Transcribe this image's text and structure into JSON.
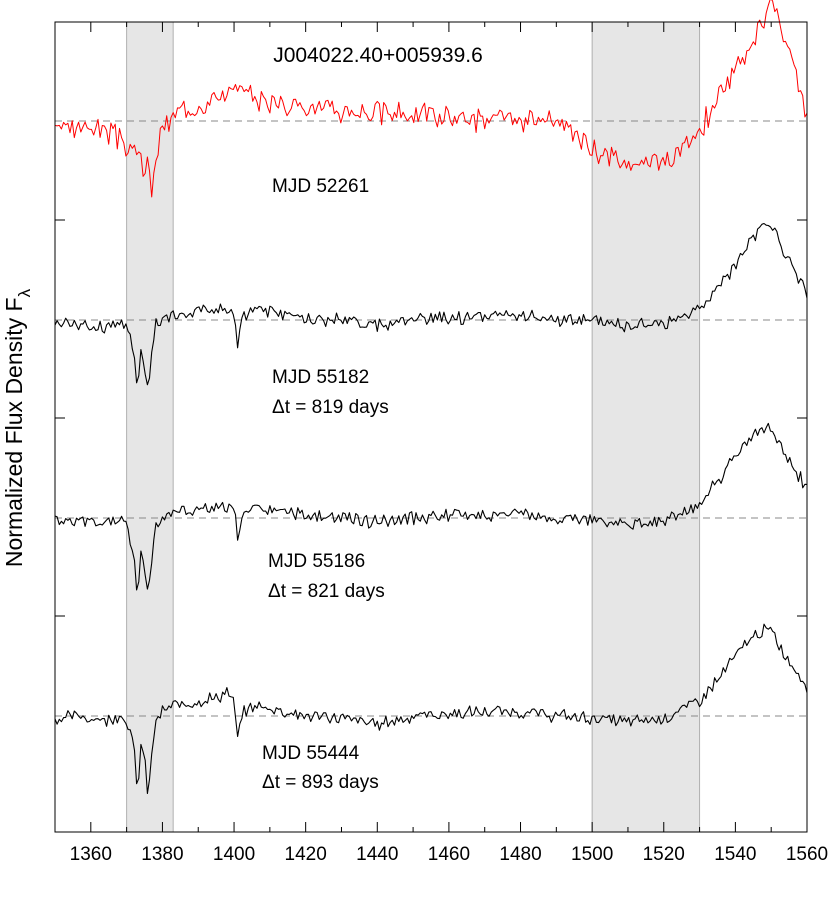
{
  "chart_data": {
    "type": "line",
    "title": "J004022.40+005939.6",
    "xlabel": "",
    "ylabel": "Normalized Flux Density F",
    "ylabel_subscript": "λ",
    "xlim": [
      1350,
      1560
    ],
    "x_ticks": [
      1360,
      1380,
      1400,
      1420,
      1440,
      1460,
      1480,
      1500,
      1520,
      1540,
      1560
    ],
    "shaded_regions": [
      [
        1370,
        1383
      ],
      [
        1500,
        1530
      ]
    ],
    "colors": {
      "epoch1": "#ff0000",
      "others": "#000000",
      "baseline": "#888888",
      "shade": "#e6e6e6"
    },
    "series": [
      {
        "name": "MJD 52261",
        "label_lines": [
          "MJD 52261"
        ],
        "color": "#ff0000",
        "baseline": 1.0,
        "x": [
          1350,
          1355,
          1360,
          1365,
          1368,
          1370,
          1372,
          1374,
          1375,
          1376,
          1377,
          1378,
          1380,
          1383,
          1388,
          1395,
          1400,
          1405,
          1410,
          1420,
          1430,
          1440,
          1450,
          1460,
          1470,
          1480,
          1490,
          1495,
          1500,
          1505,
          1510,
          1515,
          1520,
          1525,
          1530,
          1535,
          1540,
          1545,
          1548,
          1550,
          1552,
          1555,
          1558,
          1560
        ],
        "y": [
          0.98,
          0.96,
          0.98,
          0.95,
          0.9,
          0.88,
          0.85,
          0.82,
          0.7,
          0.8,
          0.65,
          0.82,
          0.95,
          1.02,
          1.08,
          1.12,
          1.15,
          1.12,
          1.1,
          1.08,
          1.05,
          1.04,
          1.04,
          1.02,
          1.01,
          1.0,
          0.98,
          0.95,
          0.85,
          0.82,
          0.78,
          0.8,
          0.82,
          0.85,
          0.95,
          1.12,
          1.25,
          1.38,
          1.52,
          1.6,
          1.5,
          1.35,
          1.18,
          1.02
        ]
      },
      {
        "name": "MJD 55182",
        "label_lines": [
          "MJD 55182",
          "Δt = 819 days"
        ],
        "color": "#000000",
        "baseline": 1.0,
        "x": [
          1350,
          1355,
          1360,
          1365,
          1368,
          1370,
          1372,
          1373,
          1374,
          1375,
          1376,
          1377,
          1378,
          1380,
          1383,
          1388,
          1395,
          1400,
          1401,
          1402,
          1405,
          1410,
          1420,
          1430,
          1440,
          1450,
          1460,
          1470,
          1480,
          1490,
          1500,
          1505,
          1510,
          1515,
          1520,
          1525,
          1530,
          1535,
          1540,
          1545,
          1548,
          1550,
          1552,
          1555,
          1558,
          1560
        ],
        "y": [
          0.99,
          0.98,
          0.97,
          0.97,
          0.99,
          0.97,
          0.85,
          0.65,
          0.85,
          0.78,
          0.65,
          0.82,
          0.97,
          1.0,
          1.02,
          1.04,
          1.06,
          1.04,
          0.88,
          1.0,
          1.05,
          1.05,
          1.0,
          1.0,
          0.97,
          1.0,
          1.01,
          1.02,
          1.02,
          1.0,
          0.99,
          0.98,
          0.97,
          0.98,
          0.98,
          1.02,
          1.06,
          1.15,
          1.28,
          1.42,
          1.5,
          1.47,
          1.4,
          1.3,
          1.2,
          1.12
        ]
      },
      {
        "name": "MJD 55186",
        "label_lines": [
          "MJD 55186",
          "Δt = 821 days"
        ],
        "color": "#000000",
        "baseline": 1.0,
        "x": [
          1350,
          1355,
          1360,
          1365,
          1368,
          1370,
          1372,
          1373,
          1374,
          1375,
          1376,
          1377,
          1378,
          1380,
          1383,
          1388,
          1395,
          1400,
          1401,
          1402,
          1405,
          1410,
          1420,
          1430,
          1440,
          1450,
          1460,
          1470,
          1480,
          1490,
          1500,
          1505,
          1510,
          1515,
          1520,
          1525,
          1530,
          1535,
          1540,
          1545,
          1548,
          1550,
          1552,
          1555,
          1558,
          1560
        ],
        "y": [
          0.99,
          0.98,
          0.97,
          0.98,
          1.0,
          0.96,
          0.82,
          0.6,
          0.82,
          0.75,
          0.62,
          0.8,
          0.97,
          1.0,
          1.03,
          1.04,
          1.05,
          1.05,
          0.9,
          1.0,
          1.04,
          1.04,
          1.01,
          1.0,
          0.98,
          1.0,
          1.01,
          1.02,
          1.02,
          1.0,
          0.99,
          0.98,
          0.97,
          0.98,
          0.99,
          1.02,
          1.07,
          1.18,
          1.3,
          1.42,
          1.46,
          1.44,
          1.38,
          1.28,
          1.2,
          1.15
        ]
      },
      {
        "name": "MJD 55444",
        "label_lines": [
          "MJD 55444",
          "Δt = 893 days"
        ],
        "color": "#000000",
        "baseline": 1.0,
        "x": [
          1350,
          1355,
          1360,
          1365,
          1368,
          1370,
          1372,
          1373,
          1374,
          1375,
          1376,
          1377,
          1378,
          1380,
          1383,
          1388,
          1395,
          1398,
          1400,
          1401,
          1402,
          1405,
          1410,
          1420,
          1430,
          1440,
          1450,
          1460,
          1470,
          1480,
          1490,
          1500,
          1505,
          1510,
          1515,
          1520,
          1525,
          1530,
          1535,
          1540,
          1545,
          1548,
          1550,
          1552,
          1555,
          1558,
          1560
        ],
        "y": [
          0.98,
          1.0,
          0.99,
          0.98,
          1.01,
          0.98,
          0.85,
          0.62,
          0.85,
          0.78,
          0.6,
          0.8,
          0.97,
          1.02,
          1.05,
          1.07,
          1.09,
          1.12,
          1.06,
          0.88,
          1.0,
          1.05,
          1.04,
          1.0,
          0.99,
          0.96,
          1.0,
          1.01,
          1.02,
          1.02,
          1.0,
          0.99,
          0.98,
          0.97,
          0.98,
          0.99,
          1.03,
          1.08,
          1.18,
          1.3,
          1.4,
          1.43,
          1.42,
          1.36,
          1.27,
          1.2,
          1.15
        ]
      }
    ]
  }
}
